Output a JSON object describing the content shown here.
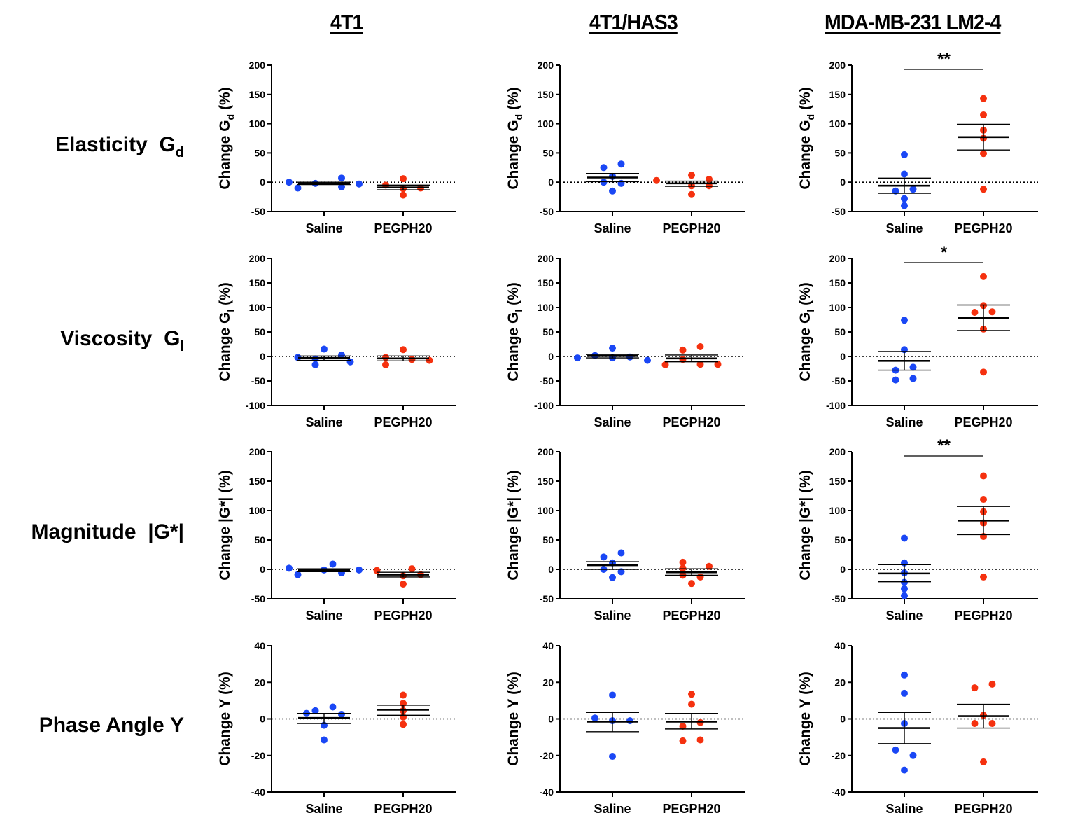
{
  "columns": [
    "4T1",
    "4T1/HAS3",
    "MDA-MB-231 LM2-4"
  ],
  "rows": [
    {
      "label": "Elasticity",
      "symbol": "G",
      "sub": "d",
      "ylabel_main": "Change G",
      "ylabel_sub": "d",
      "ylabel_tail": " (%)"
    },
    {
      "label": "Viscosity",
      "symbol": "G",
      "sub": "l",
      "ylabel_main": "Change G",
      "ylabel_sub": "l",
      "ylabel_tail": " (%)"
    },
    {
      "label": "Magnitude",
      "symbol": "|G*|",
      "sub": "",
      "ylabel_main": "Change |G*| (%)",
      "ylabel_sub": "",
      "ylabel_tail": ""
    },
    {
      "label": "Phase Angle",
      "symbol": "Y",
      "sub": "",
      "ylabel_main": "Change Y (%)",
      "ylabel_sub": "",
      "ylabel_tail": ""
    }
  ],
  "colors": {
    "saline": "#1a47f5",
    "pegph20": "#f5310f",
    "axis": "#000000"
  },
  "chart_data": [
    {
      "type": "scatter",
      "row": 0,
      "col": 0,
      "title": "4T1",
      "ylabel": "Change Gd (%)",
      "categories": [
        "Saline",
        "PEGPH20"
      ],
      "ylim": [
        -50,
        200
      ],
      "yticks": [
        -50,
        0,
        50,
        100,
        150,
        200
      ],
      "reference_line": 0,
      "series": [
        {
          "name": "Saline",
          "values": [
            0,
            -10,
            -2,
            7,
            -8,
            -3
          ],
          "mean": -2,
          "sem": [
            -4,
            0
          ]
        },
        {
          "name": "PEGPH20",
          "values": [
            -5,
            6,
            -11,
            -22,
            -10
          ],
          "mean": -9,
          "sem": [
            -13,
            -5
          ]
        }
      ],
      "significance": ""
    },
    {
      "type": "scatter",
      "row": 0,
      "col": 1,
      "title": "4T1/HAS3",
      "ylabel": "Change Gd (%)",
      "categories": [
        "Saline",
        "PEGPH20"
      ],
      "ylim": [
        -50,
        200
      ],
      "yticks": [
        -50,
        0,
        50,
        100,
        150,
        200
      ],
      "reference_line": 0,
      "series": [
        {
          "name": "Saline",
          "values": [
            25,
            31,
            10,
            0,
            -2,
            -15
          ],
          "mean": 8,
          "sem": [
            1,
            15
          ]
        },
        {
          "name": "PEGPH20",
          "values": [
            3,
            12,
            -6,
            5,
            -6,
            -21
          ],
          "mean": -2,
          "sem": [
            -7,
            2
          ]
        }
      ],
      "significance": ""
    },
    {
      "type": "scatter",
      "row": 0,
      "col": 2,
      "title": "MDA-MB-231 LM2-4",
      "ylabel": "Change Gd (%)",
      "categories": [
        "Saline",
        "PEGPH20"
      ],
      "ylim": [
        -50,
        200
      ],
      "yticks": [
        -50,
        0,
        50,
        100,
        150,
        200
      ],
      "reference_line": 0,
      "series": [
        {
          "name": "Saline",
          "values": [
            47,
            14,
            -15,
            -12,
            -28,
            -40
          ],
          "mean": -6,
          "sem": [
            -19,
            7
          ]
        },
        {
          "name": "PEGPH20",
          "values": [
            143,
            115,
            89,
            75,
            49,
            -12
          ],
          "mean": 77,
          "sem": [
            55,
            99
          ]
        }
      ],
      "significance": "**"
    },
    {
      "type": "scatter",
      "row": 1,
      "col": 0,
      "title": "4T1",
      "ylabel": "Change Gl (%)",
      "categories": [
        "Saline",
        "PEGPH20"
      ],
      "ylim": [
        -100,
        200
      ],
      "yticks": [
        -100,
        -50,
        0,
        50,
        100,
        150,
        200
      ],
      "reference_line": 0,
      "series": [
        {
          "name": "Saline",
          "values": [
            15,
            -2,
            -17,
            -5,
            3,
            -11
          ],
          "mean": -3,
          "sem": [
            -8,
            1
          ]
        },
        {
          "name": "PEGPH20",
          "values": [
            -2,
            -17,
            14,
            -6,
            -8
          ],
          "mean": -4,
          "sem": [
            -9,
            1
          ]
        }
      ],
      "significance": ""
    },
    {
      "type": "scatter",
      "row": 1,
      "col": 1,
      "title": "4T1/HAS3",
      "ylabel": "Change Gl (%)",
      "categories": [
        "Saline",
        "PEGPH20"
      ],
      "ylim": [
        -100,
        200
      ],
      "yticks": [
        -100,
        -50,
        0,
        50,
        100,
        150,
        200
      ],
      "reference_line": 0,
      "series": [
        {
          "name": "Saline",
          "values": [
            -3,
            2,
            17,
            -3,
            -1,
            -8
          ],
          "mean": 1,
          "sem": [
            -3,
            4
          ]
        },
        {
          "name": "PEGPH20",
          "values": [
            -17,
            13,
            -6,
            20,
            -16,
            -16
          ],
          "mean": -4,
          "sem": [
            -11,
            3
          ]
        }
      ],
      "significance": ""
    },
    {
      "type": "scatter",
      "row": 1,
      "col": 2,
      "title": "MDA-MB-231 LM2-4",
      "ylabel": "Change Gl (%)",
      "categories": [
        "Saline",
        "PEGPH20"
      ],
      "ylim": [
        -100,
        200
      ],
      "yticks": [
        -100,
        -50,
        0,
        50,
        100,
        150,
        200
      ],
      "reference_line": 0,
      "series": [
        {
          "name": "Saline",
          "values": [
            74,
            14,
            -28,
            -22,
            -48,
            -45
          ],
          "mean": -9,
          "sem": [
            -28,
            10
          ]
        },
        {
          "name": "PEGPH20",
          "values": [
            163,
            104,
            90,
            91,
            56,
            -32
          ],
          "mean": 79,
          "sem": [
            53,
            105
          ]
        }
      ],
      "significance": "*"
    },
    {
      "type": "scatter",
      "row": 2,
      "col": 0,
      "title": "4T1",
      "ylabel": "Change |G*| (%)",
      "categories": [
        "Saline",
        "PEGPH20"
      ],
      "ylim": [
        -50,
        200
      ],
      "yticks": [
        -50,
        0,
        50,
        100,
        150,
        200
      ],
      "reference_line": 0,
      "series": [
        {
          "name": "Saline",
          "values": [
            2,
            -9,
            -1,
            9,
            -6,
            -1
          ],
          "mean": -1,
          "sem": [
            -4,
            1
          ]
        },
        {
          "name": "PEGPH20",
          "values": [
            -2,
            1,
            -11,
            -25,
            -9
          ],
          "mean": -9,
          "sem": [
            -13,
            -5
          ]
        }
      ],
      "significance": ""
    },
    {
      "type": "scatter",
      "row": 2,
      "col": 1,
      "title": "4T1/HAS3",
      "ylabel": "Change |G*| (%)",
      "categories": [
        "Saline",
        "PEGPH20"
      ],
      "ylim": [
        -50,
        200
      ],
      "yticks": [
        -50,
        0,
        50,
        100,
        150,
        200
      ],
      "reference_line": 0,
      "series": [
        {
          "name": "Saline",
          "values": [
            21,
            28,
            11,
            0,
            -4,
            -14
          ],
          "mean": 7,
          "sem": [
            0,
            13
          ]
        },
        {
          "name": "PEGPH20",
          "values": [
            12,
            -10,
            2,
            5,
            -13,
            -24
          ],
          "mean": -5,
          "sem": [
            -10,
            1
          ]
        }
      ],
      "significance": ""
    },
    {
      "type": "scatter",
      "row": 2,
      "col": 2,
      "title": "MDA-MB-231 LM2-4",
      "ylabel": "Change |G*| (%)",
      "categories": [
        "Saline",
        "PEGPH20"
      ],
      "ylim": [
        -50,
        200
      ],
      "yticks": [
        -50,
        0,
        50,
        100,
        150,
        200
      ],
      "reference_line": 0,
      "series": [
        {
          "name": "Saline",
          "values": [
            53,
            11,
            -6,
            -22,
            -33,
            -45
          ],
          "mean": -7,
          "sem": [
            -21,
            8
          ]
        },
        {
          "name": "PEGPH20",
          "values": [
            159,
            119,
            98,
            79,
            56,
            -13
          ],
          "mean": 83,
          "sem": [
            59,
            107
          ]
        }
      ],
      "significance": "**"
    },
    {
      "type": "scatter",
      "row": 3,
      "col": 0,
      "title": "4T1",
      "ylabel": "Change Y (%)",
      "categories": [
        "Saline",
        "PEGPH20"
      ],
      "ylim": [
        -40,
        40
      ],
      "yticks": [
        -40,
        -20,
        0,
        20,
        40
      ],
      "reference_line": 0,
      "series": [
        {
          "name": "Saline",
          "values": [
            3,
            4.5,
            6.5,
            2.5,
            -3.5,
            -11.5
          ],
          "mean": 0.5,
          "sem": [
            -2.5,
            3
          ]
        },
        {
          "name": "PEGPH20",
          "values": [
            13,
            8.5,
            4.5,
            1,
            -3
          ],
          "mean": 5,
          "sem": [
            2,
            7.5
          ]
        }
      ],
      "significance": ""
    },
    {
      "type": "scatter",
      "row": 3,
      "col": 1,
      "title": "4T1/HAS3",
      "ylabel": "Change Y (%)",
      "categories": [
        "Saline",
        "PEGPH20"
      ],
      "ylim": [
        -40,
        40
      ],
      "yticks": [
        -40,
        -20,
        0,
        20,
        40
      ],
      "reference_line": 0,
      "series": [
        {
          "name": "Saline",
          "values": [
            13,
            0.5,
            -1,
            -1,
            -20.5
          ],
          "mean": -1.5,
          "sem": [
            -7,
            3.5
          ]
        },
        {
          "name": "PEGPH20",
          "values": [
            13.5,
            8,
            -4,
            -2,
            -12,
            -11.5
          ],
          "mean": -1.5,
          "sem": [
            -5.5,
            3
          ]
        }
      ],
      "significance": ""
    },
    {
      "type": "scatter",
      "row": 3,
      "col": 2,
      "title": "MDA-MB-231 LM2-4",
      "ylabel": "Change Y (%)",
      "categories": [
        "Saline",
        "PEGPH20"
      ],
      "ylim": [
        -40,
        40
      ],
      "yticks": [
        -40,
        -20,
        0,
        20,
        40
      ],
      "reference_line": 0,
      "series": [
        {
          "name": "Saline",
          "values": [
            24,
            14,
            -2.5,
            -17,
            -20,
            -28
          ],
          "mean": -5,
          "sem": [
            -13.5,
            3.5
          ]
        },
        {
          "name": "PEGPH20",
          "values": [
            17,
            19,
            2,
            -2.5,
            -2.5,
            -23.5
          ],
          "mean": 1.5,
          "sem": [
            -5,
            8
          ]
        }
      ],
      "significance": ""
    }
  ]
}
